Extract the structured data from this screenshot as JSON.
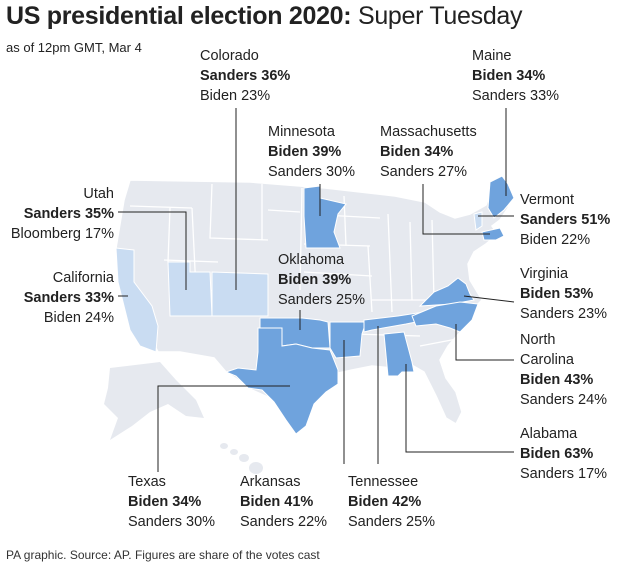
{
  "header": {
    "title_bold": "US presidential election 2020:",
    "title_rest": " Super Tuesday",
    "subtitle": "as of 12pm GMT, Mar 4"
  },
  "footer": "PA graphic. Source: AP. Figures are share of the votes cast",
  "colors": {
    "background_state": "#e6e9ef",
    "state_border": "#ffffff",
    "biden": "#6fa3dd",
    "sanders": "#c9dcf2",
    "leader_line": "#222222"
  },
  "states": {
    "colorado": {
      "name": "Colorado",
      "winner": "Sanders",
      "winner_line": "Sanders 36%",
      "second_line": "Biden 23%"
    },
    "maine": {
      "name": "Maine",
      "winner": "Biden",
      "winner_line": "Biden 34%",
      "second_line": "Sanders 33%"
    },
    "minnesota": {
      "name": "Minnesota",
      "winner": "Biden",
      "winner_line": "Biden 39%",
      "second_line": "Sanders 30%"
    },
    "massachusetts": {
      "name": "Massachusetts",
      "winner": "Biden",
      "winner_line": "Biden 34%",
      "second_line": "Sanders 27%"
    },
    "utah": {
      "name": "Utah",
      "winner": "Sanders",
      "winner_line": "Sanders 35%",
      "second_line": "Bloomberg 17%"
    },
    "vermont": {
      "name": "Vermont",
      "winner": "Sanders",
      "winner_line": "Sanders 51%",
      "second_line": "Biden 22%"
    },
    "california": {
      "name": "California",
      "winner": "Sanders",
      "winner_line": "Sanders 33%",
      "second_line": "Biden 24%"
    },
    "oklahoma": {
      "name": "Oklahoma",
      "winner": "Biden",
      "winner_line": "Biden 39%",
      "second_line": "Sanders 25%"
    },
    "virginia": {
      "name": "Virginia",
      "winner": "Biden",
      "winner_line": "Biden 53%",
      "second_line": "Sanders 23%"
    },
    "north_carolina": {
      "name_line1": "North",
      "name_line2": "Carolina",
      "winner": "Biden",
      "winner_line": "Biden 43%",
      "second_line": "Sanders 24%"
    },
    "alabama": {
      "name": "Alabama",
      "winner": "Biden",
      "winner_line": "Biden 63%",
      "second_line": "Sanders 17%"
    },
    "texas": {
      "name": "Texas",
      "winner": "Biden",
      "winner_line": "Biden 34%",
      "second_line": "Sanders 30%"
    },
    "arkansas": {
      "name": "Arkansas",
      "winner": "Biden",
      "winner_line": "Biden 41%",
      "second_line": "Sanders 22%"
    },
    "tennessee": {
      "name": "Tennessee",
      "winner": "Biden",
      "winner_line": "Biden 42%",
      "second_line": "Sanders 25%"
    }
  }
}
